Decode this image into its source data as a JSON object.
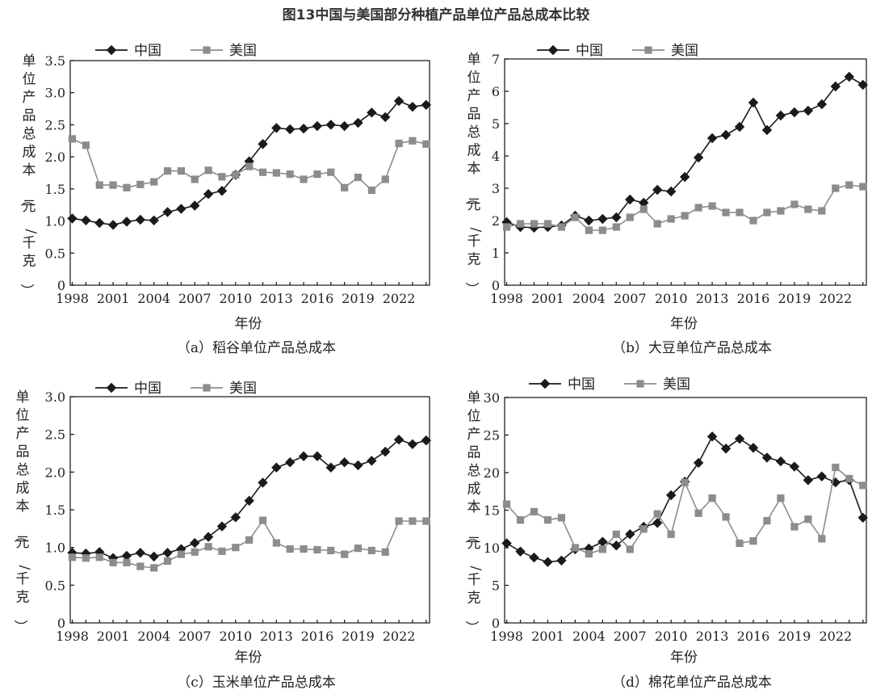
{
  "figure_title": "图13中国与美国部分种植产品单位产品总成本比较",
  "colors": {
    "china": "#1a1a1a",
    "usa": "#8c8c8c"
  },
  "chart_data": [
    {
      "type": "line",
      "title": "（a）稻谷单位产品总成本",
      "xlabel": "年份",
      "ylabel": "单位产品总成本（元/千克）",
      "ylim": [
        0,
        3.5
      ],
      "yticks": [
        "0",
        "0.5",
        "1.0",
        "1.5",
        "2.0",
        "2.5",
        "3.0",
        "3.5"
      ],
      "xticks": [
        "1998",
        "2001",
        "2004",
        "2007",
        "2010",
        "2013",
        "2016",
        "2019",
        "2022"
      ],
      "legend": [
        "中国",
        "美国"
      ],
      "x": [
        1998,
        1999,
        2000,
        2001,
        2002,
        2003,
        2004,
        2005,
        2006,
        2007,
        2008,
        2009,
        2010,
        2011,
        2012,
        2013,
        2014,
        2015,
        2016,
        2017,
        2018,
        2019,
        2020,
        2021,
        2022,
        2023,
        2024
      ],
      "series": [
        {
          "name": "中国",
          "marker": "diamond",
          "values": [
            1.04,
            1.01,
            0.97,
            0.94,
            0.99,
            1.02,
            1.01,
            1.14,
            1.19,
            1.24,
            1.42,
            1.47,
            1.72,
            1.93,
            2.2,
            2.45,
            2.43,
            2.44,
            2.48,
            2.5,
            2.48,
            2.53,
            2.69,
            2.62,
            2.87,
            2.78,
            2.81
          ]
        },
        {
          "name": "美国",
          "marker": "square",
          "values": [
            2.28,
            2.18,
            1.56,
            1.56,
            1.52,
            1.57,
            1.61,
            1.78,
            1.78,
            1.65,
            1.79,
            1.69,
            1.72,
            1.85,
            1.76,
            1.75,
            1.73,
            1.65,
            1.73,
            1.76,
            1.52,
            1.68,
            1.48,
            1.65,
            2.21,
            2.25,
            2.2
          ]
        }
      ]
    },
    {
      "type": "line",
      "title": "（b）大豆单位产品总成本",
      "xlabel": "年份",
      "ylabel": "单位产品总成本（元/千克）",
      "ylim": [
        0,
        7
      ],
      "yticks": [
        "0",
        "1",
        "2",
        "3",
        "4",
        "5",
        "6",
        "7"
      ],
      "xticks": [
        "1998",
        "2001",
        "2004",
        "2007",
        "2010",
        "2013",
        "2016",
        "2019",
        "2022"
      ],
      "legend": [
        "中国",
        "美国"
      ],
      "x": [
        1998,
        1999,
        2000,
        2001,
        2002,
        2003,
        2004,
        2005,
        2006,
        2007,
        2008,
        2009,
        2010,
        2011,
        2012,
        2013,
        2014,
        2015,
        2016,
        2017,
        2018,
        2019,
        2020,
        2021,
        2022,
        2023,
        2024
      ],
      "series": [
        {
          "name": "中国",
          "marker": "diamond",
          "values": [
            1.95,
            1.8,
            1.78,
            1.8,
            1.85,
            2.15,
            2.0,
            2.05,
            2.1,
            2.65,
            2.55,
            2.95,
            2.9,
            3.35,
            3.95,
            4.55,
            4.65,
            4.9,
            5.65,
            4.8,
            5.25,
            5.35,
            5.4,
            5.6,
            6.15,
            6.45,
            6.2
          ]
        },
        {
          "name": "美国",
          "marker": "square",
          "values": [
            1.8,
            1.9,
            1.9,
            1.9,
            1.8,
            2.1,
            1.7,
            1.7,
            1.8,
            2.1,
            2.35,
            1.9,
            2.05,
            2.15,
            2.4,
            2.45,
            2.25,
            2.25,
            2.0,
            2.25,
            2.3,
            2.5,
            2.35,
            2.3,
            3.0,
            3.1,
            3.05
          ]
        }
      ]
    },
    {
      "type": "line",
      "title": "（c）玉米单位产品总成本",
      "xlabel": "年份",
      "ylabel": "单位产品总成本（元/千克）",
      "ylim": [
        0,
        3.0
      ],
      "yticks": [
        "0",
        "0.5",
        "1.0",
        "1.5",
        "2.0",
        "2.5",
        "3.0"
      ],
      "xticks": [
        "1998",
        "2001",
        "2004",
        "2007",
        "2010",
        "2013",
        "2016",
        "2019",
        "2022"
      ],
      "legend": [
        "中国",
        "美国"
      ],
      "x": [
        1998,
        1999,
        2000,
        2001,
        2002,
        2003,
        2004,
        2005,
        2006,
        2007,
        2008,
        2009,
        2010,
        2011,
        2012,
        2013,
        2014,
        2015,
        2016,
        2017,
        2018,
        2019,
        2020,
        2021,
        2022,
        2023,
        2024
      ],
      "series": [
        {
          "name": "中国",
          "marker": "diamond",
          "values": [
            0.93,
            0.92,
            0.94,
            0.86,
            0.89,
            0.93,
            0.88,
            0.93,
            0.98,
            1.06,
            1.14,
            1.28,
            1.4,
            1.62,
            1.86,
            2.06,
            2.13,
            2.21,
            2.21,
            2.06,
            2.13,
            2.09,
            2.15,
            2.27,
            2.43,
            2.37,
            2.42
          ]
        },
        {
          "name": "美国",
          "marker": "square",
          "values": [
            0.87,
            0.86,
            0.87,
            0.8,
            0.8,
            0.75,
            0.73,
            0.82,
            0.91,
            0.94,
            1.01,
            0.95,
            1.0,
            1.1,
            1.36,
            1.06,
            0.98,
            0.98,
            0.97,
            0.96,
            0.91,
            0.99,
            0.96,
            0.94,
            1.35,
            1.35,
            1.35
          ]
        }
      ]
    },
    {
      "type": "line",
      "title": "（d）棉花单位产品总成本",
      "xlabel": "年份",
      "ylabel": "单位产品总成本（元/千克）",
      "ylim": [
        0,
        30
      ],
      "yticks": [
        "0",
        "5",
        "10",
        "15",
        "20",
        "25",
        "30"
      ],
      "xticks": [
        "1998",
        "2001",
        "2004",
        "2007",
        "2010",
        "2013",
        "2016",
        "2019",
        "2022"
      ],
      "legend": [
        "中国",
        "美国"
      ],
      "x": [
        1998,
        1999,
        2000,
        2001,
        2002,
        2003,
        2004,
        2005,
        2006,
        2007,
        2008,
        2009,
        2010,
        2011,
        2012,
        2013,
        2014,
        2015,
        2016,
        2017,
        2018,
        2019,
        2020,
        2021,
        2022,
        2023,
        2024
      ],
      "series": [
        {
          "name": "中国",
          "marker": "diamond",
          "values": [
            10.6,
            9.5,
            8.7,
            8.1,
            8.3,
            9.8,
            9.9,
            10.8,
            10.3,
            11.8,
            12.8,
            13.3,
            17.0,
            18.8,
            21.3,
            24.8,
            23.2,
            24.5,
            23.3,
            22.0,
            21.5,
            20.8,
            19.0,
            19.5,
            18.7,
            19.0,
            14.0
          ]
        },
        {
          "name": "美国",
          "marker": "square",
          "values": [
            15.8,
            13.7,
            14.8,
            13.7,
            14.0,
            10.0,
            9.2,
            9.8,
            11.8,
            9.8,
            12.5,
            14.5,
            11.8,
            18.7,
            14.6,
            16.6,
            14.1,
            10.6,
            10.9,
            13.6,
            16.6,
            12.8,
            13.8,
            11.2,
            20.7,
            19.2,
            18.3
          ]
        }
      ]
    }
  ]
}
